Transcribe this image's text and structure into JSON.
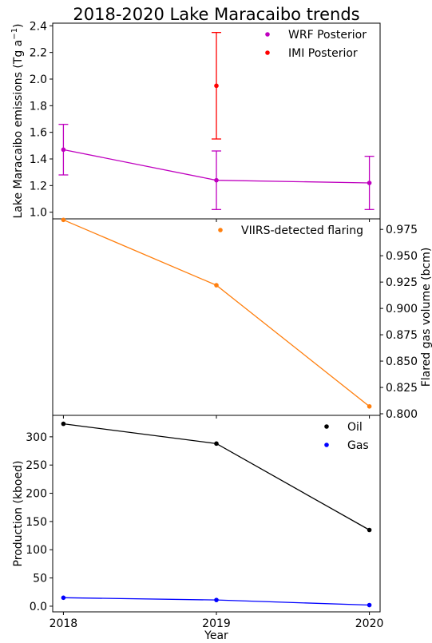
{
  "title": "2018-2020 Lake Maracaibo trends",
  "chart_data": [
    {
      "type": "line",
      "panel": "emissions",
      "ylabel": "Lake Maracaibo emissions (Tg a",
      "ylabel_sup": "−1",
      "ylabel_end": ")",
      "x": [
        2018,
        2019,
        2020
      ],
      "ylim": [
        0.95,
        2.42
      ],
      "yticks": [
        1.0,
        1.2,
        1.4,
        1.6,
        1.8,
        2.0,
        2.2,
        2.4
      ],
      "yaxis_side": "left",
      "legend_position": "top-right",
      "series": [
        {
          "name": "WRF Posterior",
          "color": "#bf00bf",
          "x": [
            2018,
            2019,
            2020
          ],
          "values": [
            1.47,
            1.24,
            1.22
          ],
          "err_low": [
            1.28,
            1.02,
            1.02
          ],
          "err_high": [
            1.66,
            1.46,
            1.42
          ],
          "line": true
        },
        {
          "name": "IMI Posterior",
          "color": "#ff0000",
          "x": [
            2019
          ],
          "values": [
            1.95
          ],
          "err_low": [
            1.55
          ],
          "err_high": [
            2.35
          ],
          "line": false
        }
      ]
    },
    {
      "type": "line",
      "panel": "flaring",
      "ylabel": "Flared gas volume (bcm)",
      "x": [
        2018,
        2019,
        2020
      ],
      "ylim": [
        0.7985,
        0.985
      ],
      "yticks": [
        0.8,
        0.825,
        0.85,
        0.875,
        0.9,
        0.925,
        0.95,
        0.975
      ],
      "ytick_labels": [
        "0.800",
        "0.825",
        "0.850",
        "0.875",
        "0.900",
        "0.925",
        "0.950",
        "0.975"
      ],
      "yaxis_side": "right",
      "legend_position": "top-right",
      "series": [
        {
          "name": "VIIRS-detected flaring",
          "color": "#ff7f0e",
          "x": [
            2018,
            2019,
            2020
          ],
          "values": [
            0.984,
            0.922,
            0.807
          ],
          "line": true
        }
      ]
    },
    {
      "type": "line",
      "panel": "production",
      "ylabel": "Production (kboed)",
      "xlabel": "Year",
      "x": [
        2018,
        2019,
        2020
      ],
      "xtick_labels": [
        "2018",
        "2019",
        "2020"
      ],
      "ylim": [
        -10,
        338
      ],
      "yticks": [
        0,
        50,
        100,
        150,
        200,
        250,
        300
      ],
      "yaxis_side": "left",
      "legend_position": "top-right",
      "series": [
        {
          "name": "Oil",
          "color": "#000000",
          "x": [
            2018,
            2019,
            2020
          ],
          "values": [
            323,
            288,
            135
          ],
          "line": true
        },
        {
          "name": "Gas",
          "color": "#0000ff",
          "x": [
            2018,
            2019,
            2020
          ],
          "values": [
            15,
            11,
            2
          ],
          "line": true
        }
      ]
    }
  ]
}
